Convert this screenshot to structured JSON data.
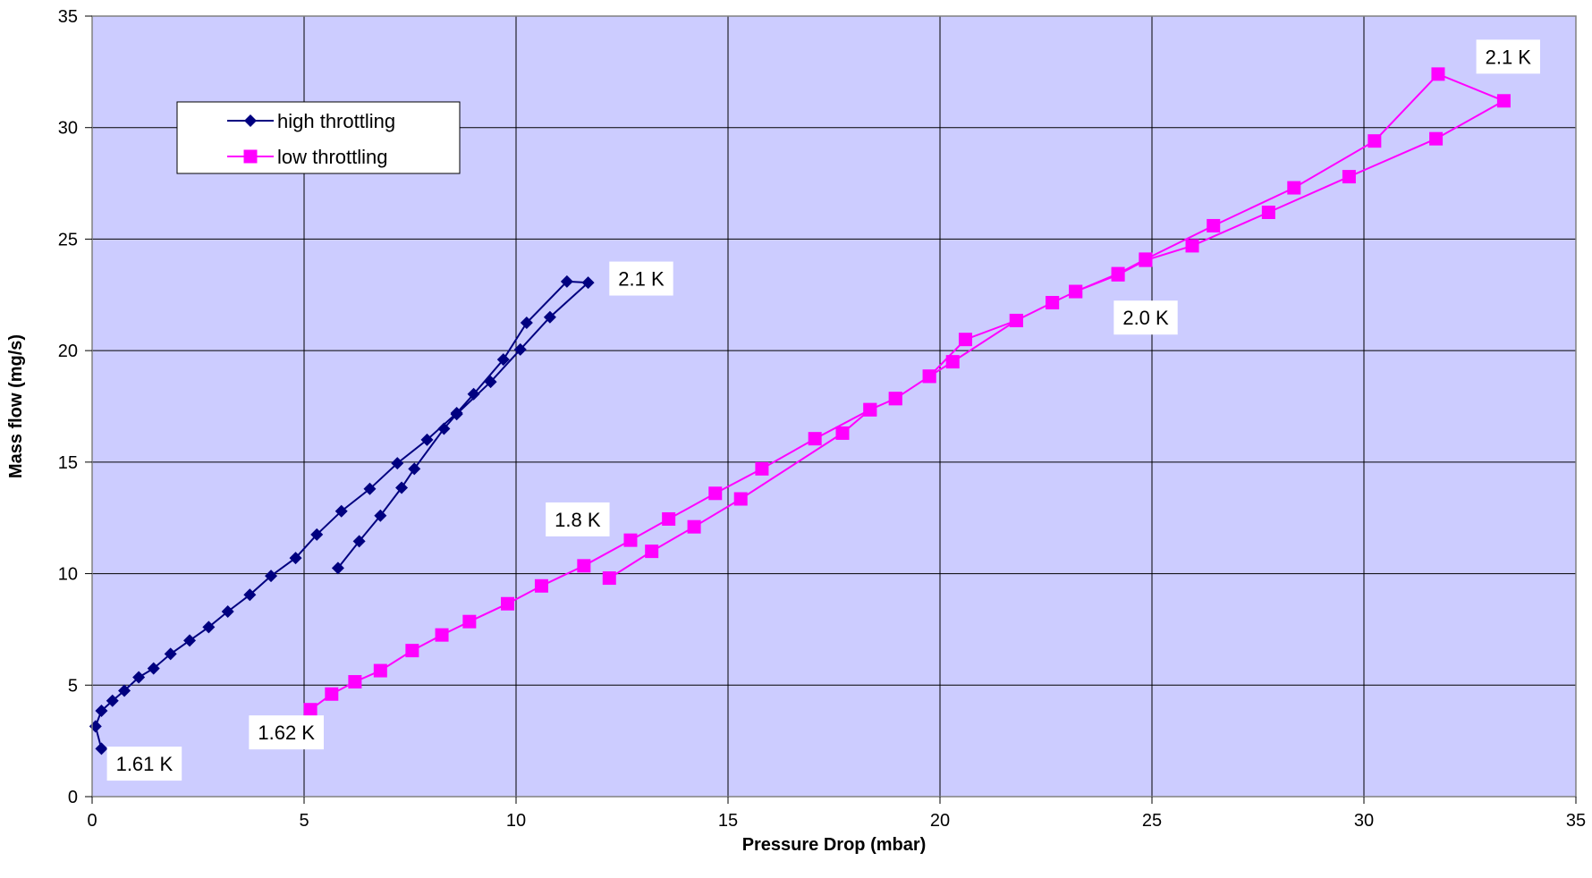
{
  "chart_data": {
    "type": "line",
    "title": "",
    "xlabel": "Pressure Drop (mbar)",
    "ylabel": "Mass flow (mg/s)",
    "xlim": [
      0,
      35
    ],
    "ylim": [
      0,
      35
    ],
    "xticks": [
      0,
      5,
      10,
      15,
      20,
      25,
      30,
      35
    ],
    "yticks": [
      0,
      5,
      10,
      15,
      20,
      25,
      30,
      35
    ],
    "grid": true,
    "plot_background": "#ccccff",
    "legend_position": "top-left",
    "series": [
      {
        "name": "high throttling",
        "color": "#000080",
        "marker": "diamond",
        "x": [
          0.22,
          0.08,
          0.22,
          0.48,
          0.76,
          1.1,
          1.45,
          1.85,
          2.3,
          2.75,
          3.2,
          3.72,
          4.22,
          4.8,
          5.3,
          5.88,
          6.55,
          7.2,
          7.9,
          8.6,
          9.0,
          9.7,
          10.25,
          11.2,
          11.7,
          10.8,
          10.1,
          9.4,
          8.6,
          8.3,
          7.6,
          7.3,
          6.8,
          6.3,
          5.8
        ],
        "y": [
          2.15,
          3.15,
          3.85,
          4.3,
          4.75,
          5.35,
          5.75,
          6.4,
          7.0,
          7.6,
          8.3,
          9.05,
          9.9,
          10.7,
          11.75,
          12.8,
          13.8,
          14.95,
          16.0,
          17.2,
          18.05,
          19.6,
          21.25,
          23.1,
          23.05,
          21.5,
          20.05,
          18.6,
          17.15,
          16.5,
          14.7,
          13.85,
          12.6,
          11.45,
          10.25
        ]
      },
      {
        "name": "low throttling",
        "color": "#ff00ff",
        "marker": "square",
        "x": [
          5.15,
          5.65,
          6.2,
          6.8,
          7.55,
          8.25,
          8.9,
          9.8,
          10.6,
          11.6,
          12.7,
          13.6,
          14.7,
          15.8,
          17.05,
          18.35,
          18.95,
          19.75,
          20.6,
          21.8,
          22.65,
          23.2,
          24.2,
          24.85,
          26.45,
          28.35,
          30.25,
          31.75,
          33.3,
          31.7,
          29.65,
          27.75,
          25.95,
          24.85,
          24.2,
          23.2,
          22.65,
          21.8,
          20.3,
          19.75,
          18.95,
          18.35,
          17.7,
          15.3,
          14.2,
          13.2,
          12.2
        ],
        "y": [
          3.9,
          4.6,
          5.15,
          5.65,
          6.55,
          7.25,
          7.85,
          8.65,
          9.45,
          10.35,
          11.5,
          12.45,
          13.6,
          14.7,
          16.05,
          17.35,
          17.85,
          18.85,
          20.5,
          21.35,
          22.15,
          22.65,
          23.45,
          24.1,
          25.6,
          27.3,
          29.4,
          32.4,
          31.2,
          29.5,
          27.8,
          26.2,
          24.7,
          24.05,
          23.4,
          22.65,
          22.15,
          21.35,
          19.5,
          18.85,
          17.85,
          17.35,
          16.3,
          13.35,
          12.1,
          11.0,
          9.8
        ]
      }
    ],
    "annotations": [
      {
        "text": "1.61 K",
        "x": 0.35,
        "y": 1.2
      },
      {
        "text": "1.62 K",
        "x": 3.7,
        "y": 2.6
      },
      {
        "text": "1.8 K",
        "x": 10.7,
        "y": 12.15
      },
      {
        "text": "2.0 K",
        "x": 24.1,
        "y": 21.2
      },
      {
        "text": "2.1 K",
        "x": 12.2,
        "y": 22.95
      },
      {
        "text": "2.1 K",
        "x": 32.65,
        "y": 32.9
      }
    ]
  }
}
